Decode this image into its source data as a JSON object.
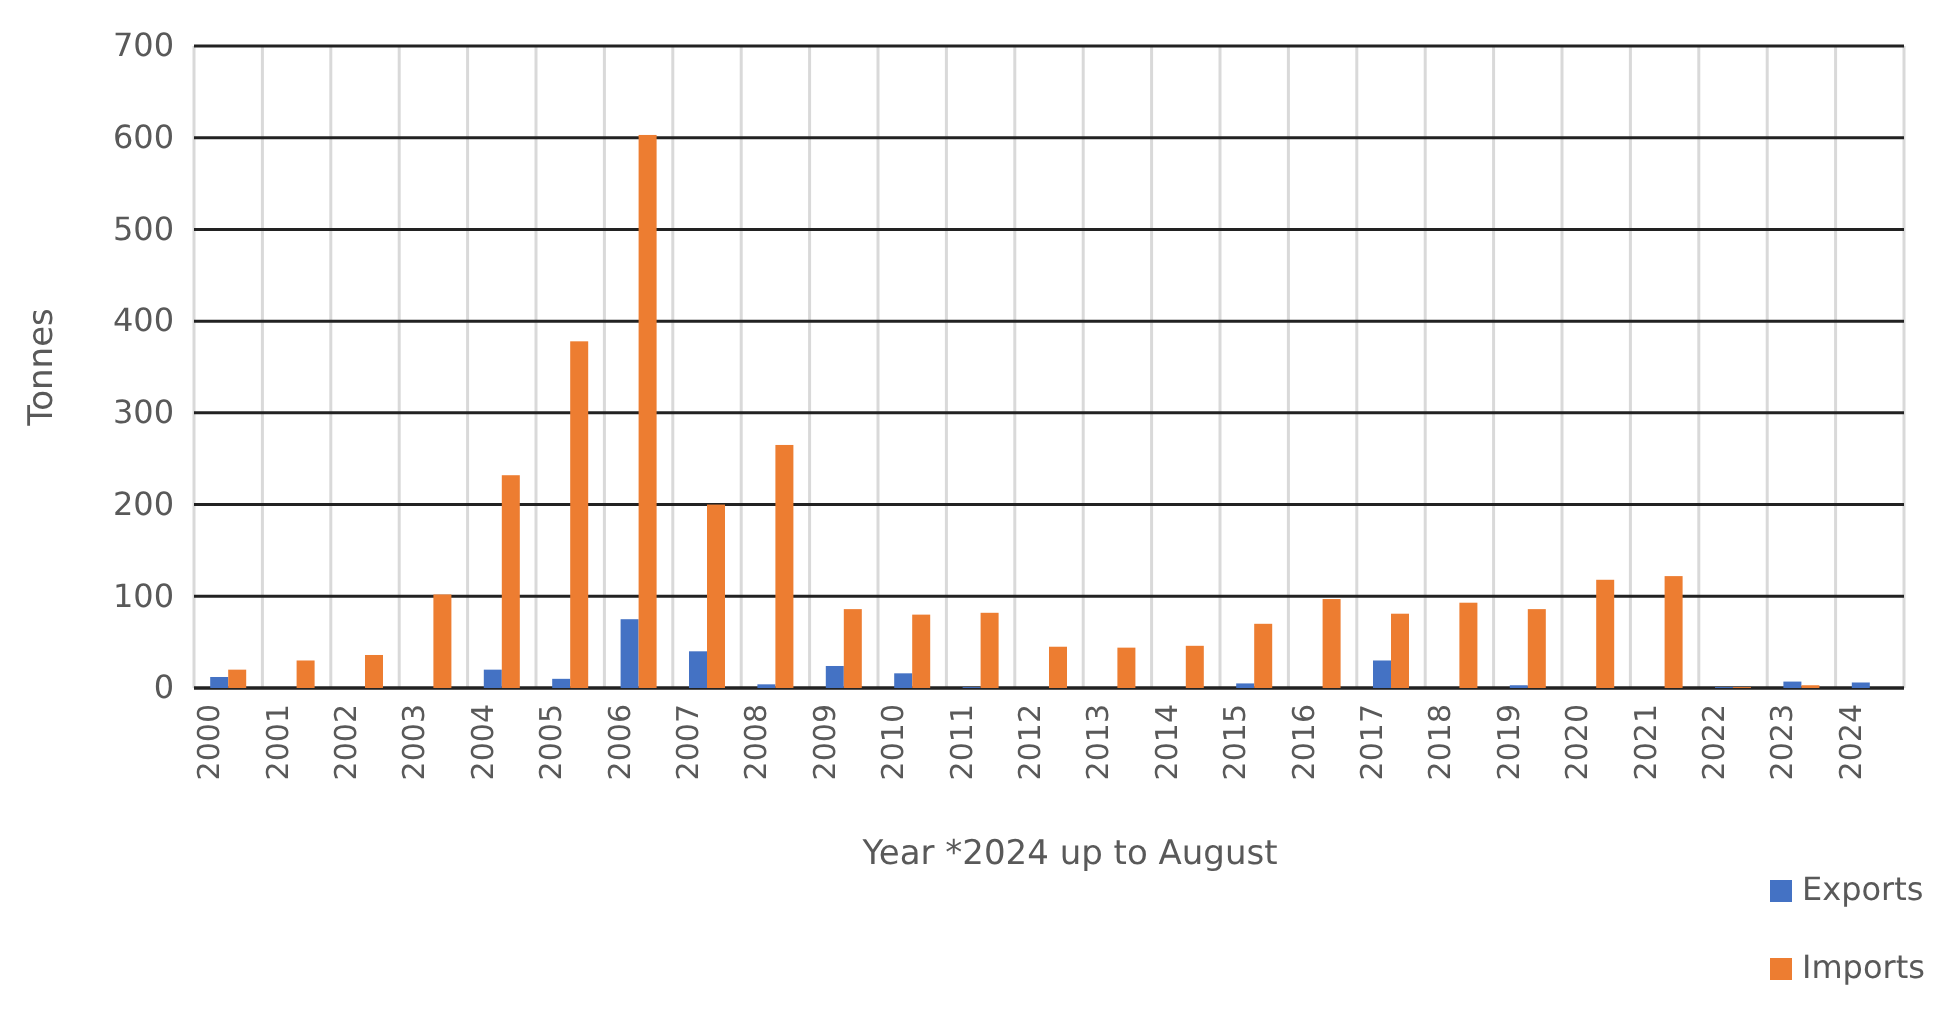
{
  "chart_data": {
    "type": "bar",
    "xlabel": "Year *2024 up to August",
    "ylabel": "Tonnes",
    "categories": [
      "2000",
      "2001",
      "2002",
      "2003",
      "2004",
      "2005",
      "2006",
      "2007",
      "2008",
      "2009",
      "2010",
      "2011",
      "2012",
      "2013",
      "2014",
      "2015",
      "2016",
      "2017",
      "2018",
      "2019",
      "2020",
      "2021",
      "2022",
      "2023",
      "2024"
    ],
    "series": [
      {
        "name": "Exports",
        "color": "#4472c4",
        "values": [
          12,
          0,
          0,
          0,
          20,
          10,
          75,
          40,
          4,
          24,
          16,
          1,
          0,
          0,
          0,
          5,
          0,
          30,
          0,
          3,
          0,
          0,
          1,
          7,
          6
        ]
      },
      {
        "name": "Imports",
        "color": "#ed7d31",
        "values": [
          20,
          30,
          36,
          102,
          232,
          378,
          603,
          200,
          265,
          86,
          80,
          82,
          45,
          44,
          46,
          70,
          97,
          81,
          93,
          86,
          118,
          122,
          1,
          3,
          0
        ]
      }
    ],
    "ylim": [
      0,
      700
    ],
    "yticks": [
      0,
      100,
      200,
      300,
      400,
      500,
      600,
      700
    ],
    "grid": true,
    "legend": "bottom right"
  }
}
